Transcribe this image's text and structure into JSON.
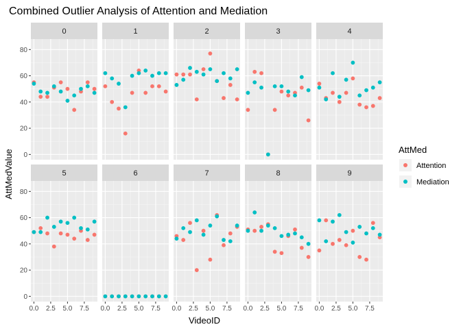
{
  "chart_data": {
    "type": "scatter",
    "title": "Combined Outlier Analysis of Attention and Mediation",
    "xlabel": "VideoID",
    "ylabel": "AttMedValue",
    "xlim": [
      -0.45,
      9.45
    ],
    "ylim": [
      -4,
      88
    ],
    "x_ticks": [
      0,
      2.5,
      5,
      7.5
    ],
    "x_tick_labels": [
      "0.0",
      "2.5",
      "5.0",
      "7.5"
    ],
    "y_ticks": [
      0,
      20,
      40,
      60,
      80
    ],
    "y_tick_labels": [
      "0",
      "20",
      "40",
      "60",
      "80"
    ],
    "grid": true,
    "legend": {
      "title": "AttMed",
      "position": "right",
      "entries": [
        {
          "name": "Attention",
          "color": "#F8766D"
        },
        {
          "name": "Mediation",
          "color": "#00BFC4"
        }
      ]
    },
    "x": [
      0,
      1,
      2,
      3,
      4,
      5,
      6,
      7,
      8,
      9
    ],
    "facets": [
      {
        "label": "0",
        "series": [
          {
            "name": "Attention",
            "values": [
              55,
              44,
              44,
              51,
              55,
              50,
              34,
              48,
              55,
              50
            ]
          },
          {
            "name": "Mediation",
            "values": [
              54,
              48,
              47,
              52,
              48,
              41,
              45,
              50,
              52,
              47
            ]
          }
        ]
      },
      {
        "label": "1",
        "series": [
          {
            "name": "Attention",
            "values": [
              52,
              40,
              35,
              16,
              47,
              64,
              47,
              52,
              52,
              48
            ]
          },
          {
            "name": "Mediation",
            "values": [
              62,
              58,
              54,
              36,
              60,
              62,
              64,
              60,
              62,
              62
            ]
          }
        ]
      },
      {
        "label": "2",
        "series": [
          {
            "name": "Attention",
            "values": [
              61,
              61,
              61,
              42,
              65,
              77,
              56,
              43,
              53,
              42
            ]
          },
          {
            "name": "Mediation",
            "values": [
              53,
              57,
              66,
              63,
              61,
              65,
              56,
              62,
              58,
              65
            ]
          }
        ]
      },
      {
        "label": "3",
        "series": [
          {
            "name": "Attention",
            "values": [
              34,
              63,
              62,
              0,
              34,
              48,
              45,
              47,
              51,
              26
            ]
          },
          {
            "name": "Mediation",
            "values": [
              47,
              55,
              51,
              0,
              52,
              52,
              48,
              45,
              59,
              49
            ]
          }
        ]
      },
      {
        "label": "4",
        "series": [
          {
            "name": "Attention",
            "values": [
              54,
              43,
              47,
              40,
              47,
              58,
              38,
              36,
              37,
              43
            ]
          },
          {
            "name": "Mediation",
            "values": [
              51,
              42,
              62,
              44,
              57,
              70,
              45,
              49,
              51,
              55
            ]
          }
        ]
      },
      {
        "label": "5",
        "series": [
          {
            "name": "Attention",
            "values": [
              49,
              52,
              48,
              38,
              48,
              47,
              44,
              50,
              43,
              47
            ]
          },
          {
            "name": "Mediation",
            "values": [
              49,
              49,
              60,
              53,
              57,
              56,
              60,
              52,
              51,
              57
            ]
          }
        ]
      },
      {
        "label": "6",
        "series": [
          {
            "name": "Attention",
            "values": [
              0,
              0,
              0,
              0,
              0,
              0,
              0,
              0,
              0,
              0
            ]
          },
          {
            "name": "Mediation",
            "values": [
              0,
              0,
              0,
              0,
              0,
              0,
              0,
              0,
              0,
              0
            ]
          }
        ]
      },
      {
        "label": "7",
        "series": [
          {
            "name": "Attention",
            "values": [
              46,
              43,
              56,
              20,
              50,
              28,
              62,
              39,
              48,
              53
            ]
          },
          {
            "name": "Mediation",
            "values": [
              44,
              52,
              49,
              58,
              47,
              54,
              61,
              43,
              42,
              54
            ]
          }
        ]
      },
      {
        "label": "8",
        "series": [
          {
            "name": "Attention",
            "values": [
              51,
              50,
              53,
              55,
              34,
              33,
              46,
              51,
              37,
              30
            ]
          },
          {
            "name": "Mediation",
            "values": [
              50,
              64,
              50,
              54,
              52,
              46,
              47,
              48,
              45,
              40
            ]
          }
        ]
      },
      {
        "label": "9",
        "series": [
          {
            "name": "Attention",
            "values": [
              35,
              58,
              40,
              43,
              39,
              50,
              30,
              28,
              56,
              45
            ]
          },
          {
            "name": "Mediation",
            "values": [
              58,
              42,
              57,
              62,
              49,
              41,
              53,
              48,
              52,
              47
            ]
          }
        ]
      }
    ]
  }
}
